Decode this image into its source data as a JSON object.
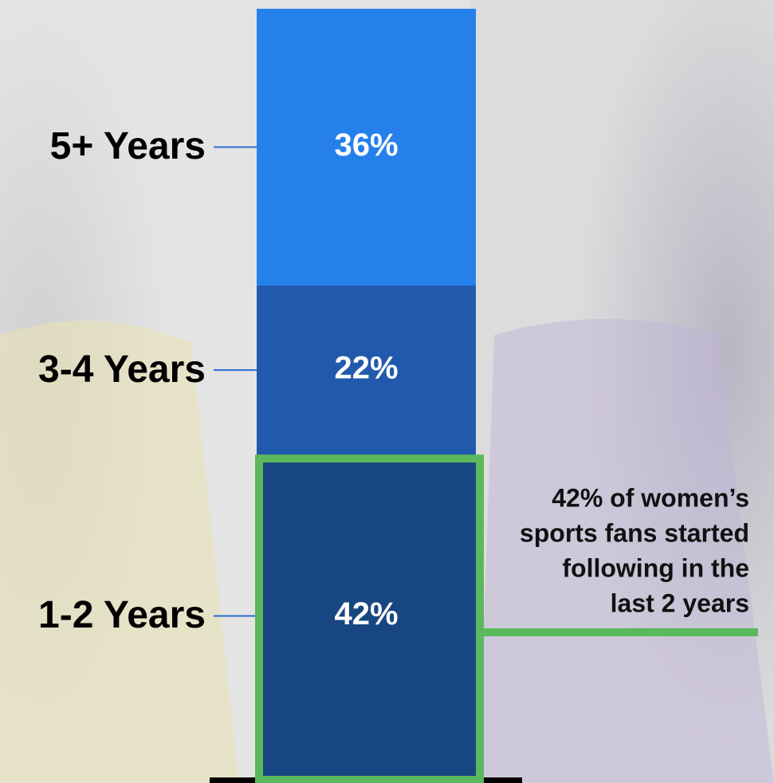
{
  "chart_data": {
    "type": "bar",
    "stacked": true,
    "categories": [
      null
    ],
    "series": [
      {
        "name": "1-2 Years",
        "color": "#184680",
        "values": [
          42
        ],
        "value_labels": [
          "42%"
        ]
      },
      {
        "name": "3-4 Years",
        "color": "#215aad",
        "values": [
          22
        ],
        "value_labels": [
          "22%"
        ]
      },
      {
        "name": "5+ Years",
        "color": "#2680eb",
        "values": [
          36
        ],
        "value_labels": [
          "36%"
        ]
      }
    ],
    "highlight": "1-2 Years",
    "highlight_color": "#5cb85c",
    "leader_color": "#2a6fd0",
    "annotation": [
      "42% of women’s",
      "sports fans started",
      "following in the",
      "last 2 years"
    ]
  }
}
